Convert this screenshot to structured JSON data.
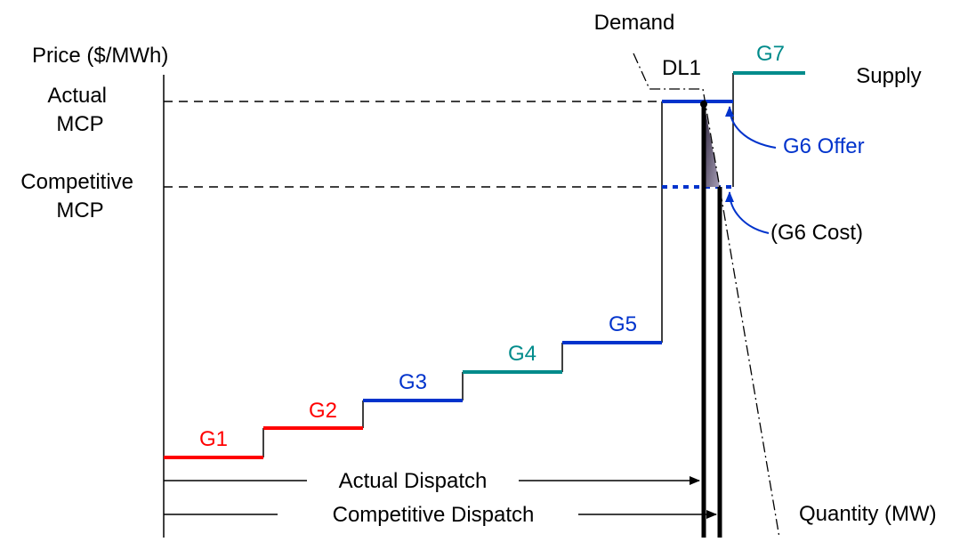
{
  "axes": {
    "y_label": "Price ($/MWh)",
    "x_label": "Quantity (MW)"
  },
  "price_levels": {
    "actual_mcp": [
      "Actual",
      "MCP"
    ],
    "competitive_mcp": [
      "Competitive",
      "MCP"
    ]
  },
  "curves": {
    "demand_label": "Demand",
    "demand_segment_label": "DL1",
    "supply_label": "Supply"
  },
  "generators": [
    {
      "label": "G1",
      "color": "#ff0000"
    },
    {
      "label": "G2",
      "color": "#ff0000"
    },
    {
      "label": "G3",
      "color": "#0033cc"
    },
    {
      "label": "G4",
      "color": "#008b8b"
    },
    {
      "label": "G5",
      "color": "#0033cc"
    },
    {
      "label": "G7",
      "color": "#008b8b"
    }
  ],
  "annotations": {
    "g6_offer": "G6 Offer",
    "g6_cost": "(G6 Cost)"
  },
  "dispatch": {
    "actual": "Actual Dispatch",
    "competitive": "Competitive Dispatch"
  },
  "colors": {
    "red": "#ff0000",
    "blue": "#0033cc",
    "teal": "#008b8b",
    "shade": "#3d3550"
  }
}
